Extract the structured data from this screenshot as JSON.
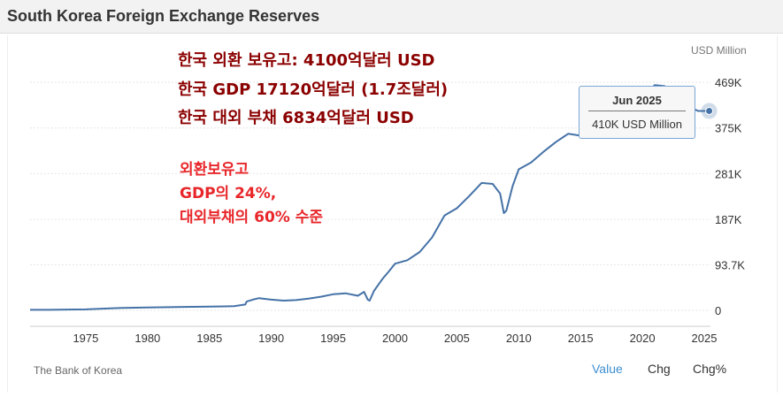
{
  "header": {
    "title": "South Korea Foreign Exchange Reserves"
  },
  "chart_data": {
    "type": "line",
    "unit": "USD Million",
    "xlim": [
      1970.5,
      2025.5
    ],
    "ylim": [
      -20000,
      500000
    ],
    "x_ticks": [
      1975,
      1980,
      1985,
      1990,
      1995,
      2000,
      2005,
      2010,
      2015,
      2020,
      2025
    ],
    "y_ticks": [
      {
        "value": 0,
        "label": "0"
      },
      {
        "value": 93700,
        "label": "93.7K"
      },
      {
        "value": 187000,
        "label": "187K"
      },
      {
        "value": 281000,
        "label": "281K"
      },
      {
        "value": 375000,
        "label": "375K"
      },
      {
        "value": 469000,
        "label": "469K"
      }
    ],
    "grid": "horizontal",
    "series": [
      {
        "color": "#4572a7",
        "x": [
          1970.5,
          1972,
          1975,
          1978,
          1980,
          1983,
          1985,
          1987,
          1987.9,
          1988,
          1988.5,
          1989,
          1990,
          1991,
          1992,
          1993,
          1994,
          1995,
          1996,
          1997,
          1997.5,
          1997.8,
          1997.95,
          1998.3,
          1999,
          1999.5,
          2000,
          2001,
          2002,
          2003,
          2004,
          2005,
          2006,
          2007,
          2007.9,
          2008.5,
          2008.8,
          2009,
          2009.5,
          2010,
          2011,
          2012,
          2013,
          2014,
          2014.8,
          2015.5,
          2016,
          2017,
          2018,
          2019,
          2020,
          2021,
          2021.8,
          2022.3,
          2022.8,
          2023,
          2023.5,
          2024,
          2024.5,
          2025.0,
          2025.4
        ],
        "y": [
          1000,
          1000,
          2000,
          5000,
          6000,
          7000,
          7700,
          8500,
          12000,
          18000,
          22000,
          25000,
          22000,
          20000,
          21000,
          24000,
          28000,
          33000,
          35000,
          30000,
          38000,
          22000,
          20000,
          40000,
          65000,
          80000,
          96000,
          103000,
          120000,
          150000,
          195000,
          210000,
          235000,
          262000,
          260000,
          240000,
          200000,
          205000,
          255000,
          290000,
          304000,
          326000,
          346000,
          363000,
          360000,
          355000,
          370000,
          385000,
          403000,
          410000,
          440000,
          463000,
          461000,
          430000,
          415000,
          420000,
          420000,
          416000,
          410000,
          410000,
          410000
        ]
      }
    ],
    "tooltip": {
      "date": "Jun 2025",
      "value": "410K USD Million",
      "x": 2025.4,
      "y": 410000
    },
    "annotations": [
      "한국 외환 보유고: 4100억달러 USD",
      "한국 GDP 17120억달러 (1.7조달러)",
      "한국 대외 부채 6834억달러 USD"
    ],
    "annotations_red": [
      "외환보유고",
      "GDP의 24%,",
      "대외부채의 60% 수준"
    ],
    "source": "The Bank of Korea"
  },
  "tabs": [
    "Value",
    "Chg",
    "Chg%"
  ],
  "colors": {
    "line": "#4572a7",
    "active_tab": "#3d8fd1",
    "anno_dark": "#8b0000",
    "anno_red": "#e8262a"
  }
}
